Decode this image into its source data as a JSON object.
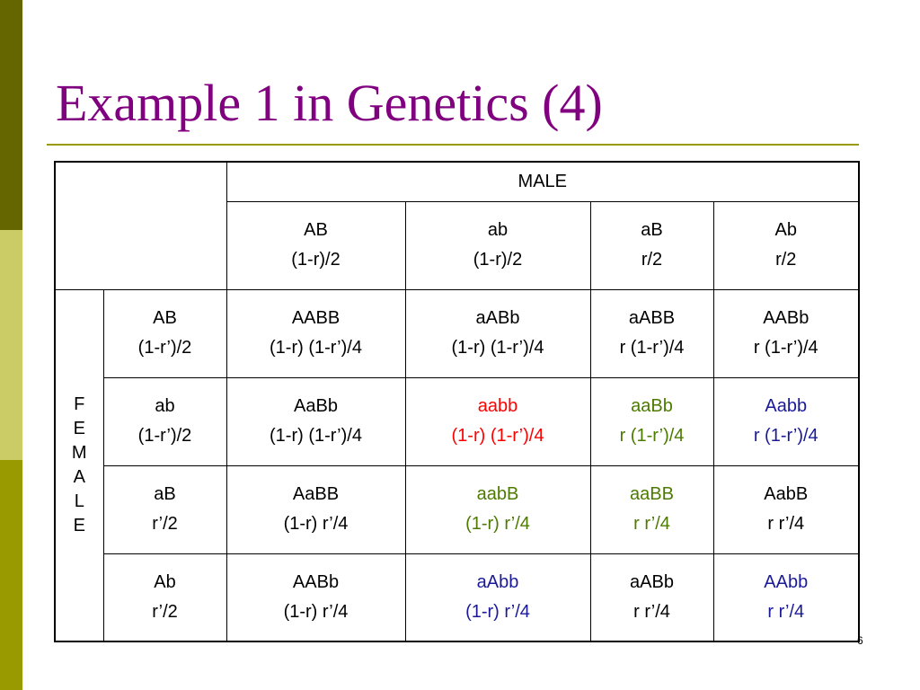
{
  "slide": {
    "title": "Example 1 in Genetics (4)",
    "page_number": "6"
  },
  "colors": {
    "title": "#800080",
    "rule": "#999900",
    "stripe_dark": "#666600",
    "stripe_light": "#cccc66",
    "stripe_mid": "#999900",
    "red": "#ff0000",
    "green": "#4d7a00",
    "blue": "#1a1a99"
  },
  "table": {
    "male_header": "MALE",
    "female_header": [
      "F",
      "E",
      "M",
      "A",
      "L",
      "E"
    ],
    "male_gametes": [
      {
        "genotype": "AB",
        "freq": "(1-r)/2"
      },
      {
        "genotype": "ab",
        "freq": "(1-r)/2"
      },
      {
        "genotype": "aB",
        "freq": "r/2"
      },
      {
        "genotype": "Ab",
        "freq": "r/2"
      }
    ],
    "rows": [
      {
        "gamete": {
          "genotype": "AB",
          "freq": "(1-r’)/2"
        },
        "cells": [
          {
            "genotype": "AABB",
            "freq": "(1-r) (1-r’)/4",
            "color": "black"
          },
          {
            "genotype": "aABb",
            "freq": "(1-r) (1-r’)/4",
            "color": "black"
          },
          {
            "genotype": "aABB",
            "freq": "r (1-r’)/4",
            "color": "black"
          },
          {
            "genotype": "AABb",
            "freq": "r (1-r’)/4",
            "color": "black"
          }
        ]
      },
      {
        "gamete": {
          "genotype": "ab",
          "freq": "(1-r’)/2"
        },
        "cells": [
          {
            "genotype": "AaBb",
            "freq": "(1-r) (1-r’)/4",
            "color": "black"
          },
          {
            "genotype": "aabb",
            "freq": "(1-r) (1-r’)/4",
            "color": "red"
          },
          {
            "genotype": "aaBb",
            "freq": "r (1-r’)/4",
            "color": "green"
          },
          {
            "genotype": "Aabb",
            "freq": "r (1-r’)/4",
            "color": "blue"
          }
        ]
      },
      {
        "gamete": {
          "genotype": "aB",
          "freq": "r’/2"
        },
        "cells": [
          {
            "genotype": "AaBB",
            "freq": "(1-r) r’/4",
            "color": "black"
          },
          {
            "genotype": "aabB",
            "freq": "(1-r) r’/4",
            "color": "green"
          },
          {
            "genotype": "aaBB",
            "freq": "r r’/4",
            "color": "green"
          },
          {
            "genotype": "AabB",
            "freq": "r r’/4",
            "color": "black"
          }
        ]
      },
      {
        "gamete": {
          "genotype": "Ab",
          "freq": "r’/2"
        },
        "cells": [
          {
            "genotype": "AABb",
            "freq": "(1-r) r’/4",
            "color": "black"
          },
          {
            "genotype": "aAbb",
            "freq": "(1-r) r’/4",
            "color": "blue"
          },
          {
            "genotype": "aABb",
            "freq": "r r’/4",
            "color": "black"
          },
          {
            "genotype": "AAbb",
            "freq": "r r’/4",
            "color": "blue"
          }
        ]
      }
    ]
  }
}
